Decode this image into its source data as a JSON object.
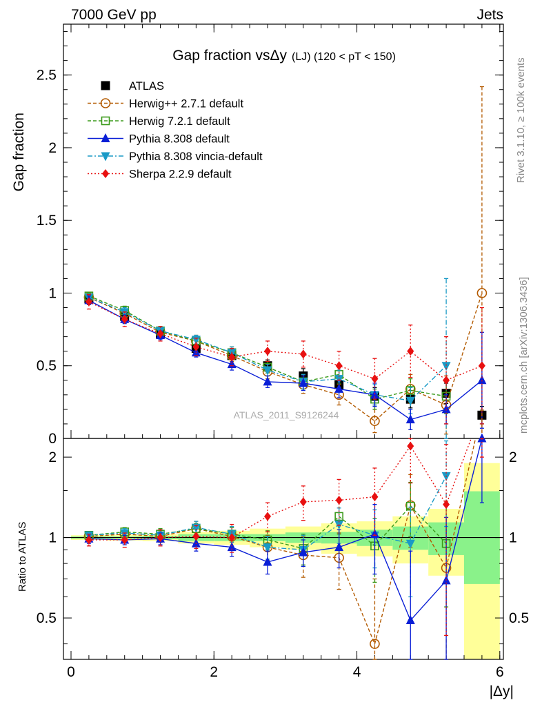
{
  "header": {
    "left": "7000 GeV pp",
    "right": "Jets"
  },
  "side_labels": {
    "rivet": "Rivet 3.1.10, ≥ 100k events",
    "mcplots": "mcplots.cern.ch [arXiv:1306.3436]"
  },
  "chart_data": {
    "type": "scatter",
    "title": "Gap fraction vsΔy",
    "title_suffix": "(LJ) (120 < pT < 150)",
    "xlabel": "|Δy|",
    "ylabel": "Gap fraction",
    "ratio_ylabel": "Ratio to ATLAS",
    "watermark": "ATLAS_2011_S9126244",
    "xlim": [
      -0.1,
      6.0
    ],
    "ylim": [
      0,
      2.85
    ],
    "ratio_ylim": [
      0.35,
      2.35
    ],
    "x_ticks": [
      "0",
      "2",
      "4",
      "6"
    ],
    "x_tick_values": [
      0,
      2,
      4,
      6
    ],
    "y_ticks": [
      "0",
      "0.5",
      "1",
      "1.5",
      "2",
      "2.5"
    ],
    "y_tick_values": [
      0,
      0.5,
      1,
      1.5,
      2,
      2.5
    ],
    "ratio_ticks": [
      "0.5",
      "1",
      "2"
    ],
    "ratio_tick_values": [
      0.5,
      1,
      2
    ],
    "x": [
      0.25,
      0.75,
      1.25,
      1.75,
      2.25,
      2.75,
      3.25,
      3.75,
      4.25,
      4.75,
      5.25,
      5.75
    ],
    "series": [
      {
        "name": "ATLAS",
        "color": "#000000",
        "marker": "square",
        "line": "none",
        "values": [
          0.96,
          0.84,
          0.72,
          0.62,
          0.57,
          0.5,
          0.43,
          0.37,
          0.29,
          0.27,
          0.31,
          0.16
        ],
        "errors": [
          0.03,
          0.03,
          0.03,
          0.03,
          0.03,
          0.04,
          0.05,
          0.05,
          0.06,
          0.06,
          0.07,
          0.06
        ],
        "ratio": [
          1.0,
          1.0,
          1.0,
          1.0,
          1.0,
          1.0,
          1.0,
          1.0,
          1.0,
          1.0,
          1.0,
          1.0
        ],
        "ratio_errors": [
          0,
          0,
          0,
          0,
          0,
          0,
          0,
          0,
          0,
          0,
          0,
          0
        ]
      },
      {
        "name": "Herwig++ 2.7.1 default",
        "color": "#b35a00",
        "marker": "circle-open",
        "line": "dashed",
        "values": [
          0.97,
          0.86,
          0.73,
          0.67,
          0.57,
          0.46,
          0.37,
          0.3,
          0.12,
          0.34,
          0.23,
          1.0
        ],
        "errors": [
          0.02,
          0.03,
          0.03,
          0.04,
          0.04,
          0.05,
          0.06,
          0.07,
          0.08,
          0.1,
          0.2,
          1.42
        ],
        "ratio": [
          1.01,
          1.03,
          1.01,
          1.08,
          1.01,
          0.92,
          0.86,
          0.84,
          0.4,
          1.32,
          0.77,
          6.0
        ],
        "ratio_errors": [
          0.03,
          0.04,
          0.05,
          0.07,
          0.08,
          0.1,
          0.15,
          0.2,
          0.3,
          0.4,
          0.6,
          1.0
        ]
      },
      {
        "name": "Herwig 7.2.1 default",
        "color": "#3a9a1a",
        "marker": "square-open",
        "line": "dashed",
        "values": [
          0.98,
          0.88,
          0.74,
          0.67,
          0.59,
          0.49,
          0.39,
          0.44,
          0.27,
          0.33,
          0.29,
          0.0
        ],
        "errors": [
          0.02,
          0.03,
          0.03,
          0.03,
          0.04,
          0.04,
          0.05,
          0.06,
          0.07,
          0.08,
          0.12,
          0.0
        ],
        "ratio": [
          1.02,
          1.05,
          1.03,
          1.08,
          1.03,
          0.98,
          0.91,
          1.2,
          0.93,
          1.31,
          0.95,
          0.0
        ],
        "ratio_errors": [
          0.03,
          0.04,
          0.05,
          0.05,
          0.06,
          0.08,
          0.12,
          0.17,
          0.25,
          0.3,
          0.4,
          0.0
        ]
      },
      {
        "name": "Pythia 8.308 default",
        "color": "#0a1fd6",
        "marker": "triangle-up",
        "line": "solid",
        "values": [
          0.95,
          0.82,
          0.71,
          0.59,
          0.51,
          0.39,
          0.38,
          0.34,
          0.3,
          0.13,
          0.2,
          0.4
        ],
        "errors": [
          0.03,
          0.03,
          0.03,
          0.03,
          0.04,
          0.04,
          0.05,
          0.06,
          0.08,
          0.07,
          0.1,
          0.33
        ],
        "ratio": [
          0.99,
          0.98,
          0.99,
          0.95,
          0.92,
          0.81,
          0.88,
          0.92,
          1.03,
          0.49,
          0.69,
          2.35
        ],
        "ratio_errors": [
          0.04,
          0.04,
          0.05,
          0.06,
          0.07,
          0.08,
          0.1,
          0.15,
          0.3,
          0.4,
          0.5,
          1.0
        ]
      },
      {
        "name": "Pythia 8.308 vincia-default",
        "color": "#1a9ac6",
        "marker": "triangle-down",
        "line": "dashdot",
        "values": [
          0.97,
          0.87,
          0.74,
          0.68,
          0.59,
          0.47,
          0.39,
          0.41,
          0.3,
          0.26,
          0.5,
          0.0
        ],
        "errors": [
          0.02,
          0.03,
          0.03,
          0.03,
          0.04,
          0.04,
          0.05,
          0.06,
          0.07,
          0.09,
          0.6,
          0.0
        ],
        "ratio": [
          1.02,
          1.04,
          1.02,
          1.09,
          1.03,
          0.92,
          0.9,
          1.12,
          1.02,
          0.95,
          1.7,
          0.0
        ],
        "ratio_errors": [
          0.03,
          0.04,
          0.05,
          0.06,
          0.07,
          0.09,
          0.12,
          0.17,
          0.25,
          0.35,
          0.6,
          0.0
        ]
      },
      {
        "name": "Sherpa 2.2.9 default",
        "color": "#e81010",
        "marker": "diamond",
        "line": "dotted",
        "values": [
          0.94,
          0.82,
          0.72,
          0.63,
          0.56,
          0.6,
          0.58,
          0.5,
          0.41,
          0.6,
          0.4,
          0.5
        ],
        "errors": [
          0.05,
          0.05,
          0.05,
          0.06,
          0.06,
          0.07,
          0.09,
          0.1,
          0.14,
          0.18,
          0.3,
          0.4
        ],
        "ratio": [
          0.98,
          0.98,
          1.0,
          1.01,
          1.0,
          1.2,
          1.36,
          1.38,
          1.42,
          2.2,
          1.33,
          3.0
        ],
        "ratio_errors": [
          0.05,
          0.06,
          0.07,
          0.1,
          0.12,
          0.15,
          0.2,
          0.27,
          0.4,
          0.6,
          0.9,
          1.0
        ]
      }
    ],
    "bands": {
      "x_edges": [
        0,
        0.5,
        1.0,
        1.5,
        2.0,
        2.5,
        3.0,
        3.5,
        4.0,
        4.5,
        5.0,
        5.5,
        6.0
      ],
      "inner_color": "#8af28a",
      "outer_color": "#ffff99",
      "inner": [
        [
          0.99,
          1.01
        ],
        [
          0.99,
          1.01
        ],
        [
          0.985,
          1.015
        ],
        [
          0.97,
          1.03
        ],
        [
          0.97,
          1.03
        ],
        [
          0.97,
          1.03
        ],
        [
          0.955,
          1.045
        ],
        [
          0.95,
          1.05
        ],
        [
          0.93,
          1.07
        ],
        [
          0.9,
          1.1
        ],
        [
          0.86,
          1.14
        ],
        [
          0.67,
          1.49
        ]
      ],
      "outer": [
        [
          0.98,
          1.02
        ],
        [
          0.975,
          1.025
        ],
        [
          0.97,
          1.03
        ],
        [
          0.95,
          1.05
        ],
        [
          0.94,
          1.06
        ],
        [
          0.92,
          1.08
        ],
        [
          0.9,
          1.1
        ],
        [
          0.87,
          1.13
        ],
        [
          0.85,
          1.15
        ],
        [
          0.8,
          1.2
        ],
        [
          0.72,
          1.28
        ],
        [
          0.35,
          1.9
        ]
      ]
    }
  }
}
